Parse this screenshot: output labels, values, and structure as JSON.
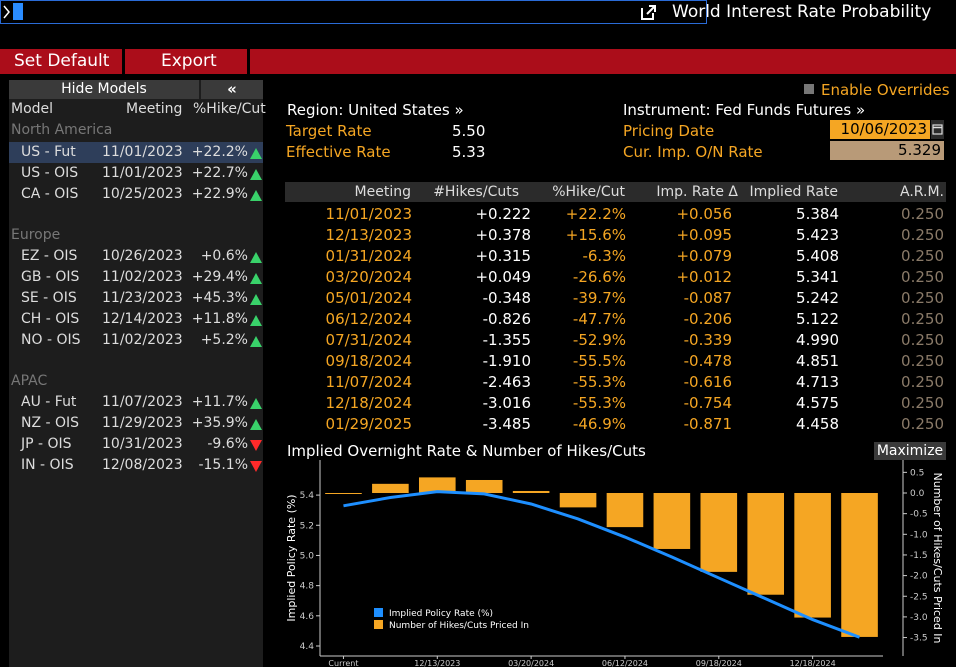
{
  "command_bar": {
    "value": ""
  },
  "toolbar": {
    "set_default_label": "Set Default",
    "export_label": "Export",
    "title": "World Interest Rate Probability"
  },
  "models_panel": {
    "hide_label": "Hide Models",
    "collapse_label": "«",
    "columns": [
      "Model",
      "Meeting",
      "%Hike/Cut"
    ],
    "groups": [
      {
        "name": "North America",
        "rows": [
          {
            "model": "US - Fut",
            "meeting": "11/01/2023",
            "pct": "+22.2%",
            "dir": "up",
            "selected": true
          },
          {
            "model": "US - OIS",
            "meeting": "11/01/2023",
            "pct": "+22.7%",
            "dir": "up"
          },
          {
            "model": "CA - OIS",
            "meeting": "10/25/2023",
            "pct": "+22.9%",
            "dir": "up"
          }
        ]
      },
      {
        "name": "Europe",
        "rows": [
          {
            "model": "EZ - OIS",
            "meeting": "10/26/2023",
            "pct": "+0.6%",
            "dir": "up"
          },
          {
            "model": "GB - OIS",
            "meeting": "11/02/2023",
            "pct": "+29.4%",
            "dir": "up"
          },
          {
            "model": "SE - OIS",
            "meeting": "11/23/2023",
            "pct": "+45.3%",
            "dir": "up"
          },
          {
            "model": "CH - OIS",
            "meeting": "12/14/2023",
            "pct": "+11.8%",
            "dir": "up"
          },
          {
            "model": "NO - OIS",
            "meeting": "11/02/2023",
            "pct": "+5.2%",
            "dir": "up"
          }
        ]
      },
      {
        "name": "APAC",
        "rows": [
          {
            "model": "AU - Fut",
            "meeting": "11/07/2023",
            "pct": "+11.7%",
            "dir": "up"
          },
          {
            "model": "NZ - OIS",
            "meeting": "11/29/2023",
            "pct": "+35.9%",
            "dir": "up"
          },
          {
            "model": "JP - OIS",
            "meeting": "10/31/2023",
            "pct": "-9.6%",
            "dir": "down"
          },
          {
            "model": "IN - OIS",
            "meeting": "12/08/2023",
            "pct": "-15.1%",
            "dir": "down"
          }
        ]
      }
    ]
  },
  "header": {
    "region": "Region: United States »",
    "target_rate_label": "Target Rate",
    "target_rate_value": "5.50",
    "effective_rate_label": "Effective Rate",
    "effective_rate_value": "5.33",
    "enable_overrides": "Enable Overrides",
    "instrument": "Instrument: Fed Funds Futures »",
    "pricing_date_label": "Pricing Date",
    "pricing_date_value": "10/06/2023",
    "on_rate_label": "Cur. Imp. O/N Rate",
    "on_rate_value": "5.329"
  },
  "table": {
    "columns": [
      "Meeting",
      "#Hikes/Cuts",
      "%Hike/Cut",
      "Imp. Rate Δ",
      "Implied Rate",
      "A.R.M."
    ],
    "rows": [
      [
        "11/01/2023",
        "+0.222",
        "+22.2%",
        "+0.056",
        "5.384",
        "0.250"
      ],
      [
        "12/13/2023",
        "+0.378",
        "+15.6%",
        "+0.095",
        "5.423",
        "0.250"
      ],
      [
        "01/31/2024",
        "+0.315",
        "-6.3%",
        "+0.079",
        "5.408",
        "0.250"
      ],
      [
        "03/20/2024",
        "+0.049",
        "-26.6%",
        "+0.012",
        "5.341",
        "0.250"
      ],
      [
        "05/01/2024",
        "-0.348",
        "-39.7%",
        "-0.087",
        "5.242",
        "0.250"
      ],
      [
        "06/12/2024",
        "-0.826",
        "-47.7%",
        "-0.206",
        "5.122",
        "0.250"
      ],
      [
        "07/31/2024",
        "-1.355",
        "-52.9%",
        "-0.339",
        "4.990",
        "0.250"
      ],
      [
        "09/18/2024",
        "-1.910",
        "-55.5%",
        "-0.478",
        "4.851",
        "0.250"
      ],
      [
        "11/07/2024",
        "-2.463",
        "-55.3%",
        "-0.616",
        "4.713",
        "0.250"
      ],
      [
        "12/18/2024",
        "-3.016",
        "-55.3%",
        "-0.754",
        "4.575",
        "0.250"
      ],
      [
        "01/29/2025",
        "-3.485",
        "-46.9%",
        "-0.871",
        "4.458",
        "0.250"
      ]
    ]
  },
  "chart_section": {
    "title": "Implied Overnight Rate & Number of Hikes/Cuts",
    "maximize_label": "Maximize"
  },
  "chart_data": {
    "type": "bar",
    "categories": [
      "Current",
      "11/01/2023",
      "12/13/2023",
      "01/31/2024",
      "03/20/2024",
      "05/01/2024",
      "06/12/2024",
      "07/31/2024",
      "09/18/2024",
      "11/07/2024",
      "12/18/2024",
      "01/29/2025"
    ],
    "x_tick_labels": [
      "Current",
      "12/13/2023",
      "03/20/2024",
      "06/12/2024",
      "09/18/2024",
      "12/18/2024"
    ],
    "series": [
      {
        "name": "Implied Policy Rate (%)",
        "kind": "line",
        "axis": "left",
        "color": "#1e8fff",
        "values": [
          5.329,
          5.384,
          5.423,
          5.408,
          5.341,
          5.242,
          5.122,
          4.99,
          4.851,
          4.713,
          4.575,
          4.458
        ]
      },
      {
        "name": "Number of Hikes/Cuts Priced In",
        "kind": "bar",
        "axis": "right",
        "color": "#f5a623",
        "values": [
          0,
          0.222,
          0.378,
          0.315,
          0.049,
          -0.348,
          -0.826,
          -1.355,
          -1.91,
          -2.463,
          -3.016,
          -3.485
        ]
      }
    ],
    "ylabel": "Implied Policy Rate (%)",
    "y2label": "Number of Hikes/Cuts Priced In",
    "ylim": [
      4.4,
      5.5
    ],
    "yticks": [
      "5.4",
      "5.2",
      "5.0",
      "4.8",
      "4.6",
      "4.4"
    ],
    "y2lim": [
      -3.75,
      0.6
    ],
    "y2ticks": [
      "0.5",
      "0.0",
      "-0.5",
      "-1.0",
      "-1.5",
      "-2.0",
      "-2.5",
      "-3.0",
      "-3.5"
    ],
    "legend_position": "bottom-left",
    "grid": false
  }
}
